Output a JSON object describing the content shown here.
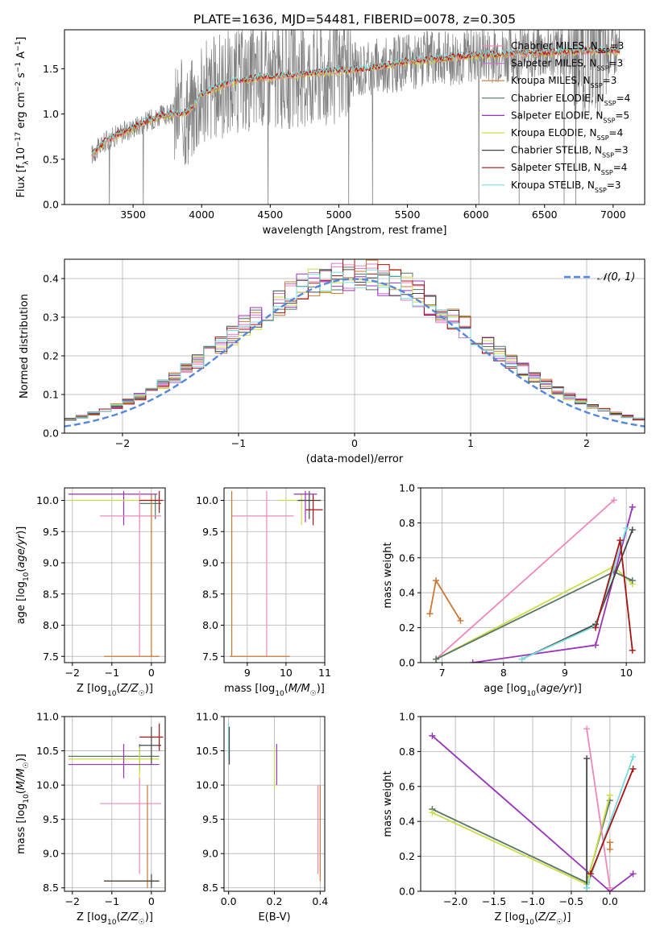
{
  "title": "PLATE=1636, MJD=54481, FIBERID=0078, z=0.305",
  "colors": {
    "chabrier_miles": "#ee88bb",
    "salpeter_miles": "#cc77cc",
    "kroupa_miles": "#cc7733",
    "chabrier_elodie": "#557766",
    "salpeter_elodie": "#9933bb",
    "kroupa_elodie": "#ccdd44",
    "chabrier_stelib": "#444444",
    "salpeter_stelib": "#aa1111",
    "kroupa_stelib": "#77dddd",
    "data": "#808080",
    "normal": "#5588dd",
    "grid": "#b0b0b0"
  },
  "chart_data": [
    {
      "id": "spectrum",
      "type": "line",
      "xlabel": "wavelength [Angstrom, rest frame]",
      "ylabel": "Flux [f_λ10^-17 erg cm^-2 s^-1 A^-1]",
      "xlim": [
        3000,
        7230
      ],
      "ylim": [
        0,
        1.93
      ],
      "xticks": [
        3500,
        4000,
        4500,
        5000,
        5500,
        6000,
        6500,
        7000
      ],
      "yticks": [
        0.0,
        0.5,
        1.0,
        1.5
      ],
      "grid": false,
      "legend_position": "right",
      "legend": [
        {
          "main": "Chabrier MILES, N",
          "sub": "SSP",
          "tail": "=3",
          "color": "chabrier_miles"
        },
        {
          "main": "Salpeter MILES, N",
          "sub": "SSP",
          "tail": "=3",
          "color": "salpeter_miles"
        },
        {
          "main": "Kroupa MILES, N",
          "sub": "SSP",
          "tail": "=3",
          "color": "kroupa_miles"
        },
        {
          "main": "Chabrier ELODIE, N",
          "sub": "SSP",
          "tail": "=4",
          "color": "chabrier_elodie"
        },
        {
          "main": "Salpeter ELODIE, N",
          "sub": "SSP",
          "tail": "=5",
          "color": "salpeter_elodie"
        },
        {
          "main": "Kroupa ELODIE, N",
          "sub": "SSP",
          "tail": "=4",
          "color": "kroupa_elodie"
        },
        {
          "main": "Chabrier STELIB, N",
          "sub": "SSP",
          "tail": "=3",
          "color": "chabrier_stelib"
        },
        {
          "main": "Salpeter STELIB, N",
          "sub": "SSP",
          "tail": "=4",
          "color": "salpeter_stelib"
        },
        {
          "main": "Kroupa STELIB, N",
          "sub": "SSP",
          "tail": "=3",
          "color": "kroupa_stelib"
        }
      ],
      "model_continuum": [
        [
          3200,
          0.55
        ],
        [
          3300,
          0.7
        ],
        [
          3400,
          0.78
        ],
        [
          3500,
          0.85
        ],
        [
          3600,
          0.92
        ],
        [
          3700,
          0.98
        ],
        [
          3800,
          1.0
        ],
        [
          3900,
          1.02
        ],
        [
          4000,
          1.22
        ],
        [
          4200,
          1.35
        ],
        [
          4400,
          1.4
        ],
        [
          4600,
          1.42
        ],
        [
          4800,
          1.45
        ],
        [
          5000,
          1.48
        ],
        [
          5200,
          1.5
        ],
        [
          5500,
          1.58
        ],
        [
          5800,
          1.62
        ],
        [
          6000,
          1.65
        ],
        [
          6200,
          1.66
        ],
        [
          6500,
          1.68
        ],
        [
          6800,
          1.7
        ],
        [
          7050,
          1.7
        ]
      ]
    },
    {
      "id": "residuals",
      "type": "histogram",
      "xlabel": "(data-model)/error",
      "ylabel": "Normed distribution",
      "xlim": [
        -2.5,
        2.5
      ],
      "ylim": [
        0,
        0.45
      ],
      "xticks": [
        -2,
        -1,
        0,
        1,
        2
      ],
      "yticks": [
        0.0,
        0.1,
        0.2,
        0.3,
        0.4
      ],
      "grid": true,
      "legend_position": "top-right",
      "normal_label": "𝒩(0, 1)",
      "bin_width": 0.1
    },
    {
      "id": "age_vs_Z",
      "type": "errorbar",
      "xlabel": "Z [log10(Z/Z☉)]",
      "ylabel": "age [log10(age/yr)]",
      "xlim": [
        -2.2,
        0.35
      ],
      "ylim": [
        7.4,
        10.2
      ],
      "xticks": [
        -2,
        -1,
        0
      ],
      "yticks": [
        7.5,
        8.0,
        8.5,
        9.0,
        9.5,
        10.0
      ],
      "grid": true,
      "bars": [
        {
          "color": "salpeter_elodie",
          "x": [
            -2.1,
            0.15
          ],
          "y": 10.1,
          "xc": -0.7,
          "yr": [
            9.6,
            10.15
          ]
        },
        {
          "color": "kroupa_elodie",
          "x": [
            -2.1,
            0.2
          ],
          "y": 10.0,
          "xc": -0.3,
          "yr": [
            9.6,
            10.1
          ]
        },
        {
          "color": "chabrier_elodie",
          "x": [
            -0.3,
            0.25
          ],
          "y": 9.95,
          "xc": 0.1,
          "yr": [
            9.7,
            10.1
          ]
        },
        {
          "color": "chabrier_miles",
          "x": [
            -1.3,
            0.25
          ],
          "y": 9.75,
          "xc": -0.3,
          "yr": [
            7.5,
            10.15
          ]
        },
        {
          "color": "kroupa_miles",
          "x": [
            -1.2,
            0.2
          ],
          "y": 7.5,
          "xc": 0.0,
          "yr": [
            7.5,
            10.1
          ]
        },
        {
          "color": "salpeter_stelib",
          "x": [
            -0.3,
            0.3
          ],
          "y": 10.0,
          "xc": 0.2,
          "yr": [
            9.8,
            10.15
          ]
        }
      ]
    },
    {
      "id": "age_vs_mass",
      "type": "errorbar",
      "xlabel": "mass [log10(M/M☉)]",
      "ylabel": "",
      "xlim": [
        8.4,
        11.0
      ],
      "ylim": [
        7.4,
        10.2
      ],
      "xticks": [
        9,
        10,
        11
      ],
      "yticks": [
        7.5,
        8.0,
        8.5,
        9.0,
        9.5,
        10.0
      ],
      "grid": true,
      "bars": [
        {
          "color": "kroupa_elodie",
          "x": [
            9.8,
            10.9
          ],
          "y": 10.0,
          "xc": 10.4,
          "yr": [
            9.6,
            10.1
          ]
        },
        {
          "color": "chabrier_stelib",
          "x": [
            10.3,
            10.9
          ],
          "y": 10.0,
          "xc": 10.6,
          "yr": [
            9.7,
            10.15
          ]
        },
        {
          "color": "salpeter_stelib",
          "x": [
            10.5,
            10.95
          ],
          "y": 9.85,
          "xc": 10.7,
          "yr": [
            9.6,
            10.1
          ]
        },
        {
          "color": "chabrier_miles",
          "x": [
            8.6,
            10.2
          ],
          "y": 9.75,
          "xc": 9.5,
          "yr": [
            7.5,
            10.15
          ]
        },
        {
          "color": "kroupa_miles",
          "x": [
            8.55,
            10.1
          ],
          "y": 7.5,
          "xc": 8.6,
          "yr": [
            7.5,
            10.15
          ]
        },
        {
          "color": "salpeter_elodie",
          "x": [
            10.2,
            10.8
          ],
          "y": 10.1,
          "xc": 10.5,
          "yr": [
            9.65,
            10.15
          ]
        }
      ]
    },
    {
      "id": "weight_vs_age",
      "type": "line",
      "xlabel": "age [log10(age/yr)]",
      "ylabel": "mass weight",
      "xlim": [
        6.65,
        10.3
      ],
      "ylim": [
        0,
        1.0
      ],
      "xticks": [
        7,
        8,
        9,
        10
      ],
      "yticks": [
        0.0,
        0.2,
        0.4,
        0.6,
        0.8,
        1.0
      ],
      "grid": true,
      "series": [
        {
          "color": "kroupa_miles",
          "points": [
            [
              6.8,
              0.28
            ],
            [
              6.9,
              0.47
            ],
            [
              7.3,
              0.24
            ]
          ]
        },
        {
          "color": "chabrier_miles",
          "points": [
            [
              6.9,
              0.02
            ],
            [
              9.8,
              0.93
            ]
          ]
        },
        {
          "color": "kroupa_elodie",
          "points": [
            [
              6.9,
              0.02
            ],
            [
              9.8,
              0.55
            ],
            [
              10.1,
              0.45
            ]
          ]
        },
        {
          "color": "chabrier_elodie",
          "points": [
            [
              6.9,
              0.02
            ],
            [
              9.8,
              0.52
            ],
            [
              10.1,
              0.47
            ]
          ]
        },
        {
          "color": "salpeter_elodie",
          "points": [
            [
              7.5,
              0.0
            ],
            [
              9.5,
              0.1
            ],
            [
              10.1,
              0.89
            ]
          ]
        },
        {
          "color": "chabrier_stelib",
          "points": [
            [
              8.3,
              0.02
            ],
            [
              9.5,
              0.22
            ],
            [
              10.1,
              0.76
            ]
          ]
        },
        {
          "color": "kroupa_stelib",
          "points": [
            [
              8.3,
              0.02
            ],
            [
              9.5,
              0.21
            ],
            [
              10.0,
              0.77
            ]
          ]
        },
        {
          "color": "salpeter_stelib",
          "points": [
            [
              9.5,
              0.2
            ],
            [
              9.9,
              0.7
            ],
            [
              10.1,
              0.07
            ]
          ]
        }
      ]
    },
    {
      "id": "mass_vs_Z",
      "type": "errorbar",
      "xlabel": "Z [log10(Z/Z☉)]",
      "ylabel": "mass [log10(M/M☉)]",
      "xlim": [
        -2.2,
        0.35
      ],
      "ylim": [
        8.45,
        11.0
      ],
      "xticks": [
        -2,
        -1,
        0
      ],
      "yticks": [
        8.5,
        9.0,
        9.5,
        10.0,
        10.5,
        11.0
      ],
      "grid": true,
      "bars": [
        {
          "color": "chabrier_elodie",
          "x": [
            -2.1,
            0.2
          ],
          "y": 10.42,
          "xc": -0.3,
          "yr": [
            10.2,
            10.6
          ]
        },
        {
          "color": "kroupa_elodie",
          "x": [
            -2.1,
            0.2
          ],
          "y": 10.38,
          "xc": -0.3,
          "yr": [
            10.0,
            10.55
          ]
        },
        {
          "color": "salpeter_elodie",
          "x": [
            -2.1,
            0.2
          ],
          "y": 10.3,
          "xc": -0.7,
          "yr": [
            10.1,
            10.6
          ]
        },
        {
          "color": "chabrier_stelib",
          "x": [
            -0.3,
            0.25
          ],
          "y": 10.58,
          "xc": 0.0,
          "yr": [
            10.3,
            10.85
          ]
        },
        {
          "color": "salpeter_stelib",
          "x": [
            -0.3,
            0.3
          ],
          "y": 10.7,
          "xc": 0.2,
          "yr": [
            10.5,
            10.9
          ]
        },
        {
          "color": "chabrier_miles",
          "x": [
            -1.3,
            0.25
          ],
          "y": 9.73,
          "xc": -0.3,
          "yr": [
            8.7,
            10.1
          ]
        },
        {
          "color": "kroupa_miles",
          "x": [
            -1.2,
            0.2
          ],
          "y": 8.6,
          "xc": -0.1,
          "yr": [
            8.5,
            10.0
          ]
        },
        {
          "color": "chabrier_stelib",
          "x": [
            -1.2,
            0.2
          ],
          "y": 8.6,
          "xc": 0.0,
          "yr": [
            8.5,
            8.7
          ]
        }
      ]
    },
    {
      "id": "mass_vs_ebv",
      "type": "errorbar",
      "xlabel": "E(B-V)",
      "ylabel": "",
      "xlim": [
        -0.02,
        0.42
      ],
      "ylim": [
        8.45,
        11.0
      ],
      "xticks": [
        0.0,
        0.2,
        0.4
      ],
      "yticks": [
        8.5,
        9.0,
        9.5,
        10.0,
        10.5,
        11.0
      ],
      "grid": true,
      "bars": [
        {
          "color": "kroupa_stelib",
          "x": [
            0.0,
            0.0
          ],
          "y": 10.7,
          "xc": 0.0,
          "yr": [
            10.4,
            10.9
          ]
        },
        {
          "color": "chabrier_stelib",
          "x": [
            0.0,
            0.0
          ],
          "y": 10.6,
          "xc": 0.003,
          "yr": [
            10.3,
            10.85
          ]
        },
        {
          "color": "kroupa_elodie",
          "x": [
            0.2,
            0.2
          ],
          "y": 10.3,
          "xc": 0.2,
          "yr": [
            9.95,
            10.55
          ]
        },
        {
          "color": "salpeter_elodie",
          "x": [
            0.21,
            0.21
          ],
          "y": 10.3,
          "xc": 0.21,
          "yr": [
            10.0,
            10.6
          ]
        },
        {
          "color": "chabrier_miles",
          "x": [
            0.39,
            0.39
          ],
          "y": 9.5,
          "xc": 0.39,
          "yr": [
            8.7,
            10.0
          ]
        },
        {
          "color": "kroupa_miles",
          "x": [
            0.4,
            0.4
          ],
          "y": 9.3,
          "xc": 0.4,
          "yr": [
            8.6,
            10.0
          ]
        }
      ]
    },
    {
      "id": "weight_vs_Z",
      "type": "line",
      "xlabel": "Z [log10(Z/Z☉)]",
      "ylabel": "mass weight",
      "xlim": [
        -2.45,
        0.45
      ],
      "ylim": [
        0,
        1.0
      ],
      "xticks": [
        -2.0,
        -1.5,
        -1.0,
        -0.5,
        0.0
      ],
      "yticks": [
        0.0,
        0.2,
        0.4,
        0.6,
        0.8,
        1.0
      ],
      "grid": true,
      "series": [
        {
          "color": "salpeter_elodie",
          "points": [
            [
              -2.3,
              0.89
            ],
            [
              0.0,
              0.0
            ],
            [
              0.3,
              0.1
            ]
          ]
        },
        {
          "color": "chabrier_elodie",
          "points": [
            [
              -2.3,
              0.47
            ],
            [
              -0.3,
              0.05
            ],
            [
              0.0,
              0.52
            ]
          ]
        },
        {
          "color": "kroupa_elodie",
          "points": [
            [
              -2.3,
              0.45
            ],
            [
              -0.3,
              0.04
            ],
            [
              0.0,
              0.55
            ]
          ]
        },
        {
          "color": "chabrier_miles",
          "points": [
            [
              -0.3,
              0.93
            ],
            [
              0.0,
              0.02
            ]
          ]
        },
        {
          "color": "chabrier_stelib",
          "points": [
            [
              -0.3,
              0.76
            ],
            [
              -0.3,
              0.02
            ]
          ]
        },
        {
          "color": "kroupa_stelib",
          "points": [
            [
              -0.3,
              0.02
            ],
            [
              0.3,
              0.77
            ]
          ]
        },
        {
          "color": "salpeter_stelib",
          "points": [
            [
              -0.25,
              0.1
            ],
            [
              0.3,
              0.7
            ]
          ]
        },
        {
          "color": "kroupa_miles",
          "points": [
            [
              0.0,
              0.28
            ],
            [
              0.0,
              0.24
            ]
          ]
        }
      ]
    }
  ]
}
